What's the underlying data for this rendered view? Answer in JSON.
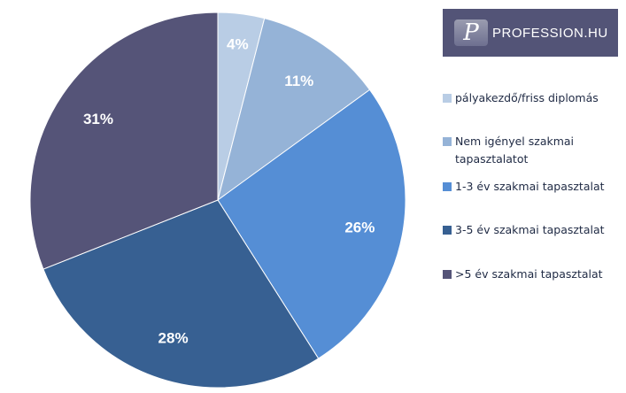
{
  "logo": {
    "text": "PROFESSION.HU",
    "mark": "P",
    "bg": "#535477"
  },
  "chart_data": {
    "type": "pie",
    "start": "top",
    "direction": "clockwise",
    "categories": [
      "pályakezdő/friss diplomás",
      "Nem igényel szakmai tapasztalatot",
      "1-3 év szakmai tapasztalat",
      "3-5 év szakmai tapasztalat",
      ">5 év szakmai tapasztalat"
    ],
    "values": [
      4,
      11,
      26,
      28,
      31
    ],
    "labels": [
      "4%",
      "11%",
      "26%",
      "28%",
      "31%"
    ],
    "colors": [
      "#b9cde5",
      "#95b3d7",
      "#558ed5",
      "#376092",
      "#555478"
    ],
    "legend": "right"
  }
}
